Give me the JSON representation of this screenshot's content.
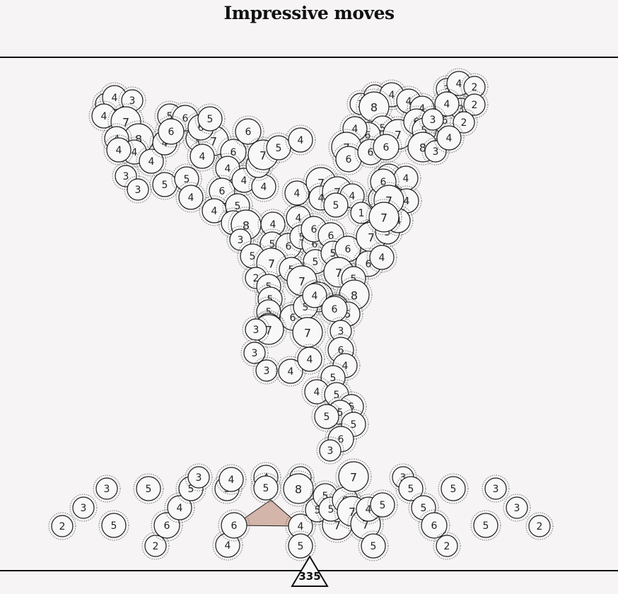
{
  "title": "Impressive moves",
  "bottom_value": "335",
  "colors": {
    "background": "#f6f4f5",
    "node_fill": "#f8f8f8",
    "node_stroke": "#1a1a1a",
    "halo_stroke": "#6b6b6b",
    "highlight_fill": "#d4b5aa",
    "line": "#111111"
  },
  "nodes": [
    [
      150,
      147,
      "2"
    ],
    [
      162,
      138,
      "4"
    ],
    [
      187,
      142,
      "3"
    ],
    [
      147,
      164,
      "4"
    ],
    [
      178,
      172,
      "7"
    ],
    [
      196,
      196,
      "8"
    ],
    [
      165,
      196,
      "4"
    ],
    [
      190,
      215,
      "4"
    ],
    [
      168,
      212,
      "4"
    ],
    [
      214,
      228,
      "4"
    ],
    [
      233,
      202,
      "4"
    ],
    [
      178,
      249,
      "3"
    ],
    [
      195,
      268,
      "3"
    ],
    [
      233,
      261,
      "5"
    ],
    [
      240,
      164,
      "5"
    ],
    [
      262,
      167,
      "6"
    ],
    [
      242,
      186,
      "6"
    ],
    [
      281,
      196,
      "6"
    ],
    [
      302,
      199,
      "7"
    ],
    [
      284,
      180,
      "6"
    ],
    [
      297,
      168,
      "5"
    ],
    [
      330,
      215,
      "6"
    ],
    [
      351,
      186,
      "6"
    ],
    [
      286,
      221,
      "4"
    ],
    [
      264,
      253,
      "5"
    ],
    [
      270,
      279,
      "4"
    ],
    [
      322,
      238,
      "4"
    ],
    [
      314,
      270,
      "6"
    ],
    [
      303,
      298,
      "4"
    ],
    [
      345,
      255,
      "4"
    ],
    [
      373,
      264,
      "4"
    ],
    [
      336,
      291,
      "5"
    ],
    [
      365,
      234,
      "5"
    ],
    [
      372,
      219,
      "7"
    ],
    [
      394,
      209,
      "5"
    ],
    [
      425,
      198,
      "4"
    ],
    [
      330,
      315,
      "4"
    ],
    [
      348,
      318,
      "8"
    ],
    [
      340,
      339,
      "3"
    ],
    [
      386,
      317,
      "4"
    ],
    [
      385,
      345,
      "5"
    ],
    [
      357,
      362,
      "5"
    ],
    [
      408,
      348,
      "6"
    ],
    [
      422,
      308,
      "4"
    ],
    [
      427,
      335,
      "5"
    ],
    [
      445,
      345,
      "6"
    ],
    [
      444,
      324,
      "6"
    ],
    [
      446,
      370,
      "5"
    ],
    [
      384,
      372,
      "7"
    ],
    [
      412,
      381,
      "5"
    ],
    [
      427,
      397,
      "7"
    ],
    [
      420,
      273,
      "4"
    ],
    [
      454,
      258,
      "7"
    ],
    [
      454,
      280,
      "4"
    ],
    [
      477,
      271,
      "7"
    ],
    [
      498,
      277,
      "4"
    ],
    [
      511,
      301,
      "1"
    ],
    [
      475,
      290,
      "5"
    ],
    [
      468,
      333,
      "6"
    ],
    [
      471,
      358,
      "5"
    ],
    [
      492,
      352,
      "6"
    ],
    [
      525,
      335,
      "7"
    ],
    [
      548,
      328,
      "5"
    ],
    [
      521,
      373,
      "6"
    ],
    [
      540,
      364,
      "4"
    ],
    [
      479,
      385,
      "7"
    ],
    [
      500,
      394,
      "5"
    ],
    [
      501,
      417,
      "8"
    ],
    [
      450,
      420,
      "7"
    ],
    [
      475,
      434,
      "4"
    ],
    [
      492,
      444,
      "5"
    ],
    [
      362,
      393,
      "2"
    ],
    [
      380,
      405,
      "5"
    ],
    [
      382,
      423,
      "5"
    ],
    [
      380,
      441,
      "5"
    ],
    [
      414,
      449,
      "6"
    ],
    [
      432,
      434,
      "5"
    ],
    [
      445,
      418,
      "4"
    ],
    [
      435,
      470,
      "7"
    ],
    [
      473,
      437,
      "6"
    ],
    [
      380,
      460,
      "5"
    ],
    [
      380,
      466,
      "7"
    ],
    [
      362,
      466,
      "3"
    ],
    [
      360,
      499,
      "3"
    ],
    [
      377,
      524,
      "3"
    ],
    [
      411,
      525,
      "4"
    ],
    [
      438,
      508,
      "4"
    ],
    [
      482,
      468,
      "3"
    ],
    [
      482,
      495,
      "6"
    ],
    [
      488,
      517,
      "4"
    ],
    [
      471,
      534,
      "5"
    ],
    [
      448,
      554,
      "4"
    ],
    [
      476,
      558,
      "5"
    ],
    [
      497,
      575,
      "5"
    ],
    [
      481,
      583,
      "5"
    ],
    [
      462,
      589,
      "5"
    ],
    [
      500,
      600,
      "5"
    ],
    [
      482,
      621,
      "6"
    ],
    [
      467,
      637,
      "3"
    ],
    [
      510,
      147,
      "3"
    ],
    [
      530,
      135,
      "3"
    ],
    [
      554,
      134,
      "4"
    ],
    [
      529,
      151,
      "8"
    ],
    [
      541,
      181,
      "5"
    ],
    [
      563,
      190,
      "7"
    ],
    [
      520,
      191,
      "6"
    ],
    [
      502,
      182,
      "4"
    ],
    [
      490,
      208,
      "7"
    ],
    [
      493,
      225,
      "6"
    ],
    [
      524,
      215,
      "6"
    ],
    [
      546,
      208,
      "6"
    ],
    [
      578,
      143,
      "4"
    ],
    [
      597,
      153,
      "4"
    ],
    [
      589,
      172,
      "6"
    ],
    [
      600,
      184,
      "5"
    ],
    [
      598,
      208,
      "8"
    ],
    [
      616,
      214,
      "3"
    ],
    [
      629,
      170,
      "6"
    ],
    [
      632,
      126,
      "3"
    ],
    [
      649,
      118,
      "4"
    ],
    [
      671,
      123,
      "2"
    ],
    [
      652,
      154,
      "3"
    ],
    [
      671,
      148,
      "2"
    ],
    [
      632,
      147,
      "4"
    ],
    [
      656,
      173,
      "2"
    ],
    [
      635,
      195,
      "4"
    ],
    [
      612,
      169,
      "3"
    ],
    [
      550,
      250,
      "6"
    ],
    [
      574,
      252,
      "4"
    ],
    [
      575,
      284,
      "4"
    ],
    [
      538,
      281,
      "5"
    ],
    [
      563,
      312,
      "4"
    ],
    [
      542,
      257,
      "6"
    ],
    [
      550,
      283,
      "7"
    ],
    [
      543,
      307,
      "7"
    ]
  ],
  "bottom_nodes": [
    [
      88,
      744,
      "2"
    ],
    [
      118,
      718,
      "3"
    ],
    [
      151,
      691,
      "3"
    ],
    [
      161,
      743,
      "5"
    ],
    [
      210,
      691,
      "5"
    ],
    [
      220,
      772,
      "2"
    ],
    [
      236,
      743,
      "6"
    ],
    [
      254,
      718,
      "4"
    ],
    [
      270,
      691,
      "5"
    ],
    [
      281,
      675,
      "3"
    ],
    [
      321,
      691,
      "5"
    ],
    [
      327,
      678,
      "4"
    ],
    [
      322,
      771,
      "4"
    ],
    [
      331,
      743,
      "6"
    ],
    [
      376,
      675,
      "4"
    ],
    [
      376,
      690,
      "5"
    ],
    [
      425,
      675,
      "3"
    ],
    [
      422,
      691,
      "8"
    ],
    [
      425,
      744,
      "4"
    ],
    [
      425,
      772,
      "5"
    ],
    [
      449,
      721,
      "5"
    ],
    [
      460,
      701,
      "5"
    ],
    [
      477,
      742,
      "7"
    ],
    [
      468,
      720,
      "5"
    ],
    [
      488,
      707,
      "6"
    ],
    [
      500,
      674,
      "7"
    ],
    [
      498,
      723,
      "7"
    ],
    [
      517,
      741,
      "7"
    ],
    [
      521,
      720,
      "4"
    ],
    [
      541,
      714,
      "5"
    ],
    [
      528,
      772,
      "5"
    ],
    [
      570,
      675,
      "3"
    ],
    [
      581,
      691,
      "5"
    ],
    [
      599,
      718,
      "5"
    ],
    [
      614,
      743,
      "6"
    ],
    [
      632,
      772,
      "2"
    ],
    [
      641,
      691,
      "5"
    ],
    [
      687,
      743,
      "5"
    ],
    [
      701,
      691,
      "3"
    ],
    [
      731,
      718,
      "3"
    ],
    [
      763,
      744,
      "2"
    ]
  ]
}
